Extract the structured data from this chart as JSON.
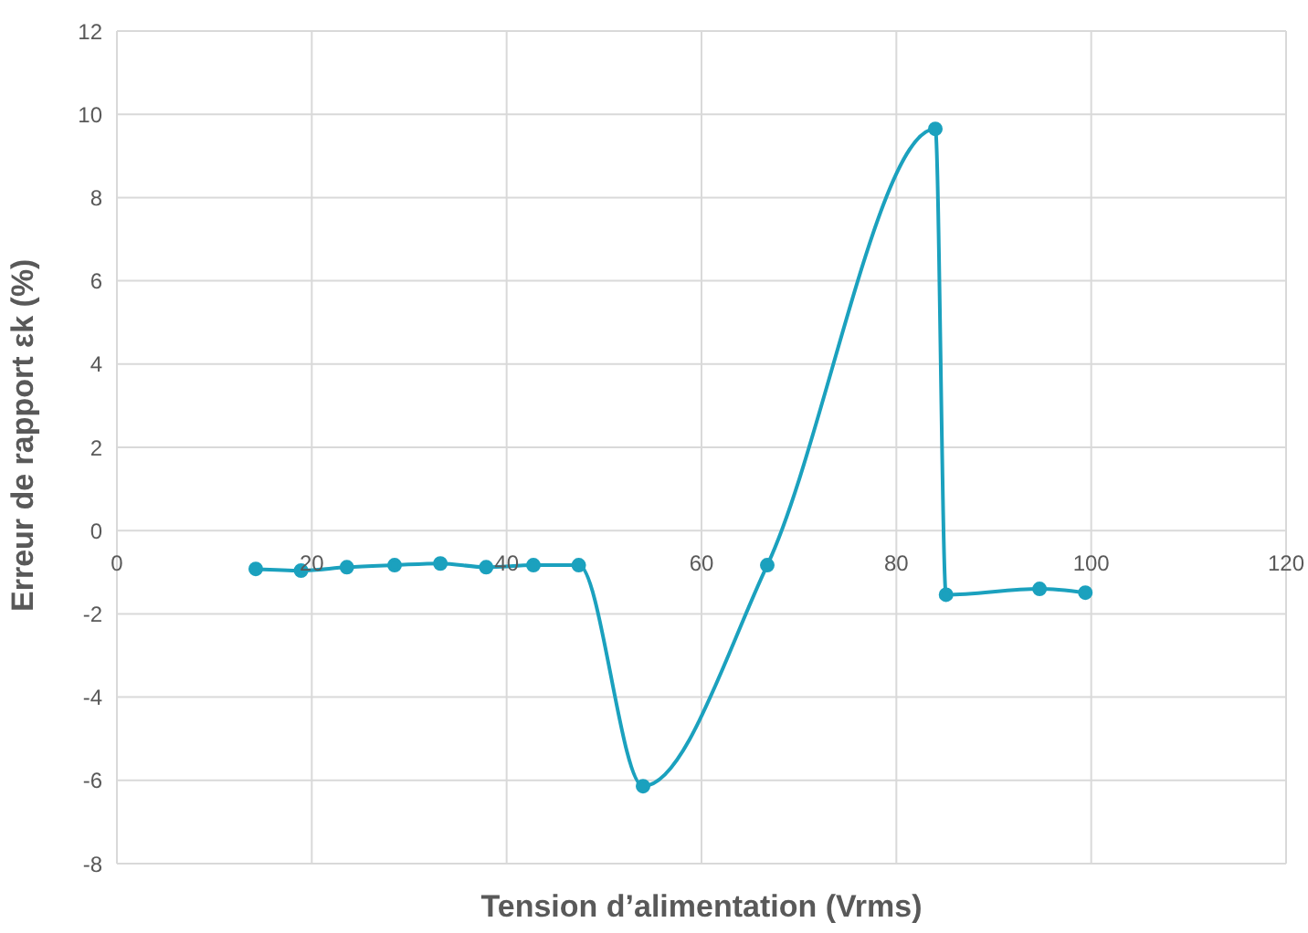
{
  "chart_data": {
    "type": "line",
    "xlabel": "Tension d’alimentation (Vrms)",
    "ylabel": "Erreur de rapport  εk (%)",
    "x": [
      14.25,
      18.9,
      23.6,
      28.5,
      33.2,
      37.9,
      42.75,
      47.4,
      54,
      66.75,
      84,
      85.1,
      94.7,
      99.4
    ],
    "series": [
      {
        "color": "#1ba1be",
        "values": [
          -0.92,
          -0.96,
          -0.88,
          -0.83,
          -0.79,
          -0.88,
          -0.83,
          -0.83,
          -6.14,
          -0.83,
          9.65,
          -1.54,
          -1.4,
          -1.49
        ]
      }
    ],
    "xlim": [
      0,
      120
    ],
    "xticks": [
      0,
      20,
      40,
      60,
      80,
      100,
      120
    ],
    "ylim": [
      -8,
      12
    ],
    "yticks": [
      -8,
      -6,
      -4,
      -2,
      0,
      2,
      4,
      6,
      8,
      10,
      12
    ],
    "grid": true,
    "marker": "circle",
    "legend": false
  }
}
